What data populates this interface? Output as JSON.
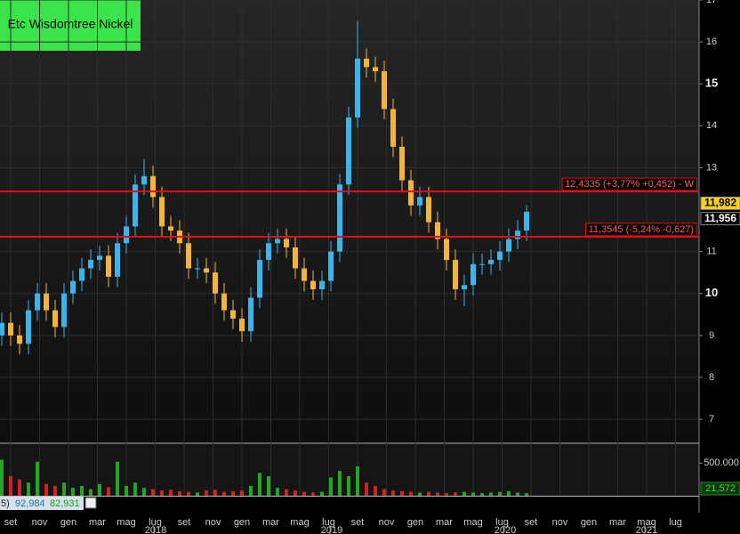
{
  "chart_data": {
    "type": "candlestick",
    "title": "Etc Wisdomtree Nickel",
    "ylim": [
      6.45,
      17
    ],
    "yticks": [
      7,
      8,
      9,
      10,
      11,
      13,
      14,
      15,
      16,
      17
    ],
    "up_color": "#3ab4ea",
    "down_color": "#f2b53a",
    "open": [
      9.0,
      9.3,
      9.0,
      8.8,
      9.6,
      10.0,
      9.6,
      9.2,
      10.0,
      10.3,
      10.6,
      10.8,
      10.9,
      10.4,
      11.2,
      11.6,
      12.6,
      12.8,
      12.3,
      11.6,
      11.5,
      11.2,
      10.6,
      10.6,
      10.5,
      10.0,
      9.6,
      9.4,
      9.1,
      9.9,
      10.8,
      11.2,
      11.3,
      11.1,
      10.6,
      10.3,
      10.1,
      10.3,
      11.0,
      12.6,
      14.2,
      15.6,
      15.4,
      15.3,
      14.4,
      13.5,
      12.7,
      12.1,
      12.3,
      11.7,
      11.3,
      10.8,
      10.1,
      10.2,
      10.7,
      10.7,
      10.8,
      11.0,
      11.3,
      11.5
    ],
    "close": [
      9.3,
      9.0,
      8.8,
      9.6,
      10.0,
      9.6,
      9.2,
      10.0,
      10.3,
      10.6,
      10.8,
      10.9,
      10.4,
      11.2,
      11.6,
      12.6,
      12.8,
      12.3,
      11.6,
      11.5,
      11.2,
      10.6,
      10.6,
      10.5,
      10.0,
      9.6,
      9.4,
      9.1,
      9.9,
      10.8,
      11.2,
      11.3,
      11.1,
      10.6,
      10.3,
      10.1,
      10.3,
      11.0,
      12.6,
      14.2,
      15.6,
      15.4,
      15.3,
      14.4,
      13.5,
      12.7,
      12.1,
      12.3,
      11.7,
      11.3,
      10.8,
      10.1,
      10.2,
      10.7,
      10.7,
      10.8,
      11.0,
      11.3,
      11.5,
      11.95
    ],
    "high": [
      9.55,
      9.55,
      9.25,
      9.85,
      10.25,
      10.25,
      9.85,
      10.25,
      10.55,
      10.85,
      11.05,
      11.15,
      11.15,
      11.45,
      11.85,
      12.85,
      13.2,
      13.05,
      12.55,
      11.85,
      11.75,
      11.45,
      10.85,
      10.85,
      10.75,
      10.25,
      9.85,
      9.65,
      10.15,
      11.05,
      11.45,
      11.55,
      11.55,
      11.35,
      10.85,
      10.55,
      10.55,
      11.25,
      12.85,
      14.45,
      16.5,
      15.85,
      15.65,
      15.55,
      14.65,
      13.75,
      12.95,
      12.55,
      12.55,
      11.95,
      11.55,
      11.05,
      10.45,
      10.95,
      10.95,
      11.05,
      11.25,
      11.55,
      11.75,
      12.1
    ],
    "low": [
      8.75,
      8.75,
      8.55,
      8.55,
      9.35,
      9.35,
      8.95,
      8.95,
      9.75,
      10.05,
      10.35,
      10.55,
      10.15,
      10.15,
      10.95,
      11.35,
      12.35,
      12.05,
      11.35,
      11.25,
      10.95,
      10.35,
      10.35,
      10.25,
      9.75,
      9.35,
      9.15,
      8.85,
      8.85,
      9.65,
      10.55,
      10.95,
      10.85,
      10.35,
      10.05,
      9.85,
      9.85,
      10.05,
      10.75,
      12.35,
      13.95,
      15.15,
      15.05,
      14.15,
      13.25,
      12.45,
      11.85,
      11.85,
      11.45,
      11.05,
      10.55,
      9.85,
      9.7,
      9.95,
      10.45,
      10.45,
      10.55,
      10.75,
      11.05,
      11.25
    ],
    "volume": [
      550000,
      300000,
      250000,
      200000,
      520000,
      180000,
      150000,
      200000,
      120000,
      150000,
      100000,
      180000,
      130000,
      520000,
      150000,
      200000,
      120000,
      100000,
      80000,
      90000,
      70000,
      60000,
      50000,
      80000,
      90000,
      60000,
      70000,
      80000,
      150000,
      350000,
      300000,
      120000,
      100000,
      80000,
      60000,
      50000,
      60000,
      280000,
      380000,
      300000,
      450000,
      200000,
      150000,
      100000,
      80000,
      70000,
      60000,
      50000,
      60000,
      50000,
      40000,
      50000,
      60000,
      50000,
      40000,
      50000,
      60000,
      70000,
      50000,
      40000
    ],
    "volume_up_color": "#22a722",
    "volume_down_color": "#d02424",
    "vlim": [
      0,
      790000
    ],
    "vticks": [
      {
        "value": 500000,
        "label": "500.000"
      }
    ],
    "levels": [
      {
        "value": 12.4335,
        "label": "12,4335 (+3,77% +0,452) - W"
      },
      {
        "value": 11.3545,
        "label": "11,3545 (-5,24% -0,627)"
      }
    ],
    "level_color": "#e01010",
    "price_tags": [
      {
        "value": 11.982,
        "label": "11,982"
      },
      {
        "value": 11.956,
        "label": "11,956"
      }
    ],
    "indicator": [
      "5)",
      "92,984",
      "82,931"
    ],
    "volume_tag": "21,572",
    "months": [
      "set",
      "nov",
      "gen",
      "mar",
      "mag",
      "lug",
      "set",
      "nov",
      "gen",
      "mar",
      "mag",
      "lug",
      "set",
      "nov",
      "gen",
      "mar",
      "mag",
      "lug",
      "set",
      "nov",
      "gen",
      "mar",
      "mag",
      "lug"
    ],
    "years": [
      "2018",
      "2019",
      "2020",
      "2021"
    ]
  }
}
